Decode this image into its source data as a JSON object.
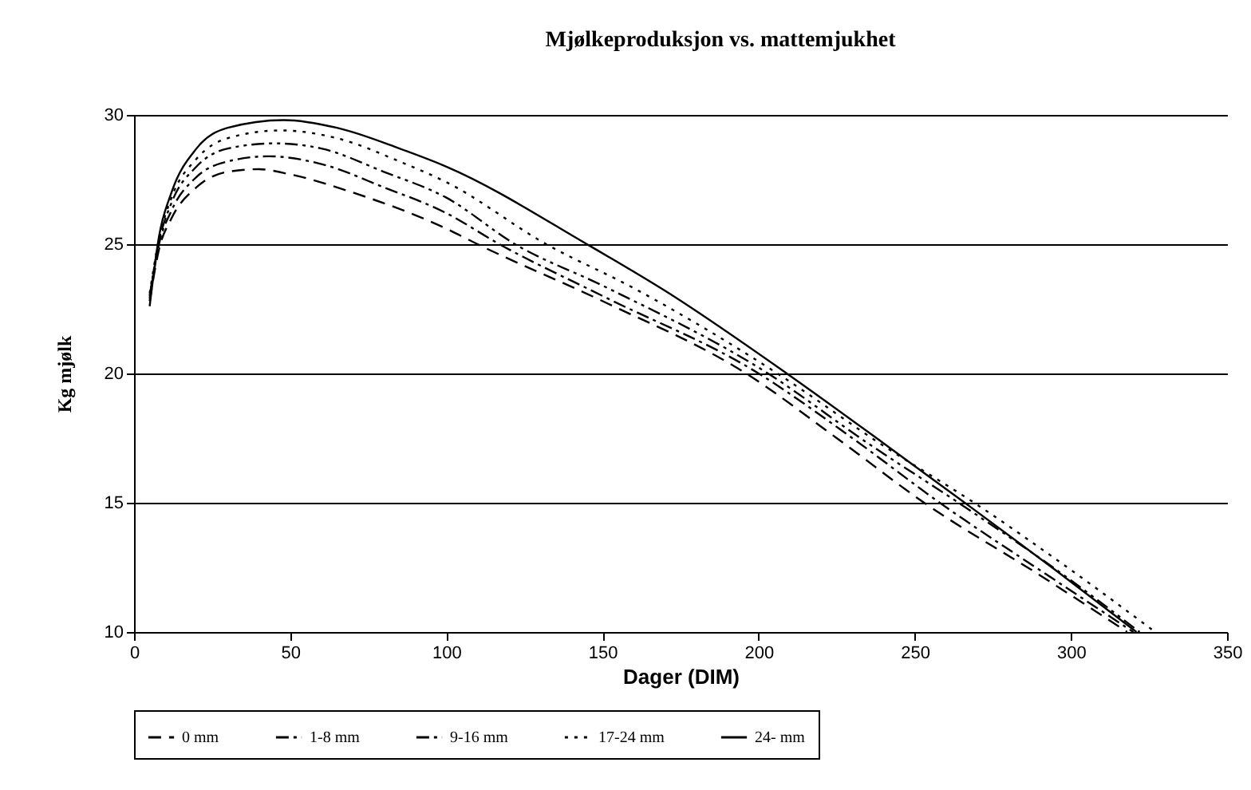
{
  "chart_data": {
    "type": "line",
    "title": "Mjølkeproduksjon vs. mattemjukhet",
    "xlabel": "Dager (DIM)",
    "ylabel": "Kg mjølk",
    "xlim": [
      0,
      350
    ],
    "xticks": [
      0,
      50,
      100,
      150,
      200,
      250,
      300,
      350
    ],
    "ylim": [
      10,
      30
    ],
    "yticks": [
      10,
      15,
      20,
      25,
      30
    ],
    "grid": "y",
    "legend": "bottom",
    "marker": "none",
    "series": [
      {
        "name": "0 mm",
        "color": "#000000",
        "line_style": "dashed",
        "x": [
          5,
          8,
          12,
          20,
          30,
          40,
          50,
          70,
          100,
          110,
          150,
          196,
          225,
          253,
          290,
          318
        ],
        "values": [
          22.8,
          24.8,
          26.0,
          27.2,
          27.8,
          27.9,
          27.7,
          27.0,
          25.6,
          25.0,
          22.8,
          20.0,
          17.5,
          15.0,
          12.2,
          10.0
        ]
      },
      {
        "name": "1-8 mm",
        "color": "#000000",
        "line_style": "dashed",
        "x": [
          5,
          8,
          12,
          20,
          30,
          43,
          60,
          80,
          100,
          117,
          150,
          200,
          230,
          258,
          295,
          320
        ],
        "values": [
          22.9,
          25.0,
          26.3,
          27.6,
          28.2,
          28.4,
          28.1,
          27.2,
          26.2,
          25.0,
          23.0,
          20.0,
          17.5,
          15.0,
          12.0,
          10.0
        ]
      },
      {
        "name": "9-16 mm",
        "color": "#000000",
        "line_style": "dashed",
        "x": [
          5,
          8,
          12,
          20,
          30,
          45,
          60,
          80,
          100,
          122,
          150,
          203,
          235,
          264,
          300,
          322
        ],
        "values": [
          23.0,
          25.1,
          26.6,
          28.0,
          28.7,
          28.9,
          28.7,
          27.8,
          26.8,
          25.0,
          23.4,
          20.0,
          17.3,
          15.0,
          12.0,
          10.0
        ]
      },
      {
        "name": "17-24 mm",
        "color": "#000000",
        "line_style": "dotted",
        "x": [
          5,
          8,
          12,
          20,
          30,
          47,
          65,
          85,
          100,
          132,
          160,
          206,
          240,
          269,
          300,
          327
        ],
        "values": [
          23.1,
          25.2,
          26.8,
          28.3,
          29.1,
          29.4,
          29.1,
          28.2,
          27.4,
          25.0,
          23.3,
          20.0,
          17.2,
          15.0,
          12.4,
          10.0
        ]
      },
      {
        "name": "24- mm",
        "color": "#000000",
        "line_style": "solid",
        "x": [
          5,
          8,
          12,
          20,
          30,
          48,
          65,
          85,
          100,
          145,
          170,
          209,
          240,
          266,
          295,
          321
        ],
        "values": [
          22.6,
          25.3,
          27.0,
          28.7,
          29.5,
          29.8,
          29.5,
          28.7,
          28.0,
          25.0,
          23.2,
          20.0,
          17.3,
          15.0,
          12.4,
          10.0
        ]
      }
    ]
  }
}
